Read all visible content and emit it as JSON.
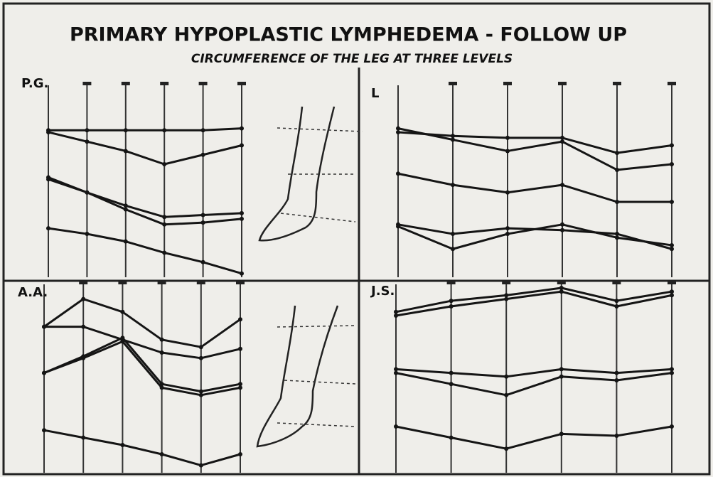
{
  "title": "PRIMARY HYPOPLASTIC LYMPHEDEMA - FOLLOW UP",
  "subtitle": "CIRCUMFERENCE OF THE LEG AT THREE LEVELS",
  "chart_data": [
    {
      "type": "line",
      "title": "P.G.",
      "categories": [
        null,
        null,
        null,
        null,
        null,
        null
      ],
      "ylim": [
        0,
        100
      ],
      "grid": true,
      "series": [
        {
          "color": "#151515",
          "values": [
            77,
            72,
            67,
            60,
            65,
            70
          ]
        },
        {
          "color": "#151515",
          "values": [
            78,
            78,
            78,
            78,
            78,
            79
          ]
        },
        {
          "color": "#151515",
          "values": [
            53,
            45,
            38,
            32,
            33,
            34
          ]
        },
        {
          "color": "#151515",
          "values": [
            52,
            45,
            36,
            28,
            29,
            31
          ]
        },
        {
          "color": "#151515",
          "values": [
            26,
            23,
            19,
            13,
            8,
            2
          ]
        }
      ]
    },
    {
      "type": "line",
      "title": "L",
      "categories": [
        null,
        null,
        null,
        null,
        null,
        null
      ],
      "ylim": [
        0,
        100
      ],
      "grid": true,
      "series": [
        {
          "color": "#151515",
          "values": [
            79,
            73,
            67,
            72,
            57,
            60
          ]
        },
        {
          "color": "#151515",
          "values": [
            77,
            75,
            74,
            74,
            66,
            70
          ]
        },
        {
          "color": "#151515",
          "values": [
            55,
            49,
            45,
            49,
            40,
            40
          ]
        },
        {
          "color": "#151515",
          "values": [
            28,
            23,
            26,
            25,
            23,
            15
          ]
        },
        {
          "color": "#151515",
          "values": [
            27,
            15,
            23,
            28,
            21,
            17
          ]
        }
      ]
    },
    {
      "type": "line",
      "title": "A.A.",
      "categories": [
        null,
        null,
        null,
        null,
        null,
        null
      ],
      "ylim": [
        0,
        100
      ],
      "grid": true,
      "series": [
        {
          "color": "#151515",
          "values": [
            79,
            94,
            87,
            72,
            68,
            83
          ]
        },
        {
          "color": "#151515",
          "values": [
            79,
            79,
            72,
            65,
            62,
            67
          ]
        },
        {
          "color": "#151515",
          "values": [
            54,
            63,
            73,
            48,
            44,
            48
          ]
        },
        {
          "color": "#151515",
          "values": [
            54,
            62,
            71,
            46,
            42,
            46
          ]
        },
        {
          "color": "#151515",
          "values": [
            23,
            19,
            15,
            10,
            4,
            10
          ]
        }
      ]
    },
    {
      "type": "line",
      "title": "J.S.",
      "categories": [
        null,
        null,
        null,
        null,
        null,
        null
      ],
      "ylim": [
        0,
        100
      ],
      "grid": true,
      "series": [
        {
          "color": "#151515",
          "values": [
            87,
            93,
            96,
            100,
            93,
            98
          ]
        },
        {
          "color": "#151515",
          "values": [
            85,
            90,
            94,
            98,
            90,
            96
          ]
        },
        {
          "color": "#151515",
          "values": [
            56,
            54,
            52,
            56,
            54,
            56
          ]
        },
        {
          "color": "#151515",
          "values": [
            54,
            48,
            42,
            52,
            50,
            54
          ]
        },
        {
          "color": "#151515",
          "values": [
            25,
            19,
            13,
            21,
            20,
            25
          ]
        }
      ]
    }
  ]
}
